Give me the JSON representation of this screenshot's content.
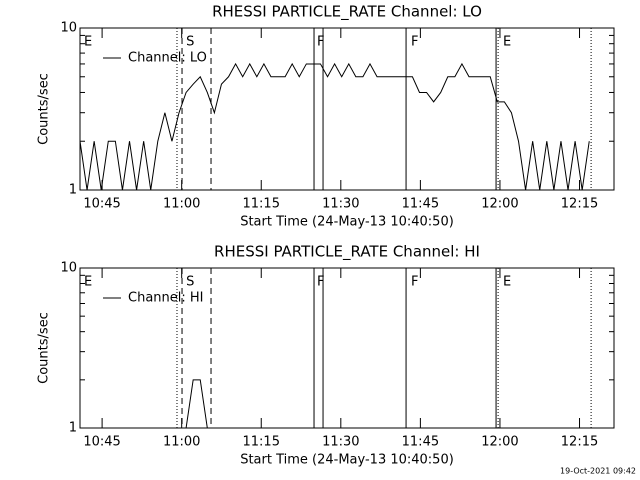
{
  "chart_data": [
    {
      "type": "line",
      "title": "RHESSI PARTICLE_RATE Channel: LO",
      "xlabel": "Start Time (24-May-13 10:40:50)",
      "ylabel": "Counts/sec",
      "log_y": true,
      "ylim": [
        1,
        10
      ],
      "yticks": [
        1,
        10
      ],
      "yminorticks": [
        2,
        3,
        4,
        5,
        6,
        7,
        8,
        9
      ],
      "xlim": [
        0,
        6040
      ],
      "xticks": [
        {
          "value": 250,
          "label": "10:45"
        },
        {
          "value": 1150,
          "label": "11:00"
        },
        {
          "value": 2050,
          "label": "11:15"
        },
        {
          "value": 2950,
          "label": "11:30"
        },
        {
          "value": 3850,
          "label": "11:45"
        },
        {
          "value": 4750,
          "label": "12:00"
        },
        {
          "value": 5650,
          "label": "12:15"
        }
      ],
      "x": [
        0,
        80,
        160,
        240,
        320,
        400,
        480,
        560,
        640,
        720,
        800,
        880,
        960,
        1040,
        1120,
        1200,
        1280,
        1360,
        1440,
        1520,
        1600,
        1680,
        1760,
        1840,
        1920,
        2000,
        2080,
        2160,
        2240,
        2320,
        2400,
        2480,
        2560,
        2640,
        2720,
        2800,
        2880,
        2960,
        3040,
        3120,
        3200,
        3280,
        3360,
        3440,
        3520,
        3600,
        3680,
        3760,
        3840,
        3920,
        4000,
        4080,
        4160,
        4240,
        4320,
        4400,
        4480,
        4560,
        4640,
        4720,
        4800,
        4880,
        4960,
        5040,
        5120,
        5200,
        5280,
        5360,
        5440,
        5520,
        5600,
        5680,
        5760
      ],
      "series": [
        {
          "name": "Channel: LO",
          "color": "#000000",
          "values": [
            2,
            1,
            2,
            1,
            2,
            2,
            1,
            2,
            1,
            2,
            1,
            2,
            3,
            2,
            3,
            4,
            4.5,
            5,
            4,
            3,
            4.5,
            5,
            6,
            5,
            6,
            5,
            6,
            5,
            5,
            5,
            6,
            5,
            6,
            6,
            6,
            5,
            6,
            5,
            6,
            5,
            5,
            6,
            5,
            5,
            5,
            5,
            5,
            5,
            4,
            4,
            3.5,
            4,
            5,
            5,
            6,
            5,
            5,
            5,
            5,
            3.5,
            3.5,
            3,
            2,
            1,
            2,
            1,
            2,
            1,
            2,
            1,
            2,
            1,
            2
          ]
        }
      ],
      "vlines": [
        {
          "x": 1097,
          "style": "dotted"
        },
        {
          "x": 1154,
          "style": "dashed"
        },
        {
          "x": 1482,
          "style": "dashed"
        },
        {
          "x": 2647,
          "style": "solid"
        },
        {
          "x": 2749,
          "style": "solid"
        },
        {
          "x": 3688,
          "style": "solid"
        },
        {
          "x": 4706,
          "style": "solid"
        },
        {
          "x": 4729,
          "style": "dotted"
        },
        {
          "x": 5781,
          "style": "dotted"
        }
      ],
      "annotations": [
        {
          "x": 45,
          "text": "E"
        },
        {
          "x": 1200,
          "text": "S"
        },
        {
          "x": 2680,
          "text": "F"
        },
        {
          "x": 3744,
          "text": "F"
        },
        {
          "x": 4785,
          "text": "E"
        }
      ]
    },
    {
      "type": "line",
      "title": "RHESSI PARTICLE_RATE Channel: HI",
      "xlabel": "Start Time (24-May-13 10:40:50)",
      "ylabel": "Counts/sec",
      "log_y": true,
      "ylim": [
        1,
        10
      ],
      "yticks": [
        1,
        10
      ],
      "yminorticks": [
        2,
        3,
        4,
        5,
        6,
        7,
        8,
        9
      ],
      "xlim": [
        0,
        6040
      ],
      "xticks": [
        {
          "value": 250,
          "label": "10:45"
        },
        {
          "value": 1150,
          "label": "11:00"
        },
        {
          "value": 2050,
          "label": "11:15"
        },
        {
          "value": 2950,
          "label": "11:30"
        },
        {
          "value": 3850,
          "label": "11:45"
        },
        {
          "value": 4750,
          "label": "12:00"
        },
        {
          "value": 5650,
          "label": "12:15"
        }
      ],
      "x": [
        0,
        80,
        160,
        240,
        320,
        400,
        480,
        560,
        640,
        720,
        800,
        880,
        960,
        1040,
        1120,
        1200,
        1280,
        1360,
        1440,
        1520,
        1600,
        1680,
        1760,
        1840,
        1920,
        2000,
        2080,
        2160,
        2240,
        2320,
        2400,
        2480,
        2560,
        2640,
        2720,
        2800,
        2880,
        2960,
        3040,
        3120,
        3200,
        3280,
        3360,
        3440,
        3520,
        3600,
        3680,
        3760,
        3840,
        3920,
        4000,
        4080,
        4160,
        4240,
        4320,
        4400,
        4480,
        4560,
        4640,
        4720,
        4800,
        4880,
        4960,
        5040,
        5120,
        5200,
        5280,
        5360,
        5440,
        5520,
        5600,
        5680,
        5760
      ],
      "series": [
        {
          "name": "Channel: HI",
          "color": "#000000",
          "values": [
            1,
            1,
            1,
            1,
            1,
            1,
            1,
            1,
            1,
            1,
            1,
            1,
            1,
            1,
            1,
            1,
            2,
            2,
            1,
            1,
            1,
            1,
            1,
            1,
            1,
            1,
            1,
            1,
            1,
            1,
            1,
            1,
            1,
            1,
            1,
            1,
            1,
            1,
            1,
            1,
            1,
            1,
            1,
            1,
            1,
            1,
            1,
            1,
            1,
            1,
            1,
            1,
            1,
            1,
            1,
            1,
            1,
            1,
            1,
            1,
            1,
            1,
            1,
            1,
            1,
            1,
            1,
            1,
            1,
            1,
            1,
            1,
            1
          ]
        }
      ],
      "vlines": [
        {
          "x": 1097,
          "style": "dotted"
        },
        {
          "x": 1154,
          "style": "dashed"
        },
        {
          "x": 1482,
          "style": "dashed"
        },
        {
          "x": 2647,
          "style": "solid"
        },
        {
          "x": 2749,
          "style": "solid"
        },
        {
          "x": 3688,
          "style": "solid"
        },
        {
          "x": 4706,
          "style": "solid"
        },
        {
          "x": 4729,
          "style": "dotted"
        },
        {
          "x": 5781,
          "style": "dotted"
        }
      ],
      "annotations": [
        {
          "x": 45,
          "text": "E"
        },
        {
          "x": 1200,
          "text": "S"
        },
        {
          "x": 2680,
          "text": "F"
        },
        {
          "x": 3744,
          "text": "F"
        },
        {
          "x": 4785,
          "text": "E"
        }
      ]
    }
  ],
  "footer": "19-Oct-2021 09:42"
}
